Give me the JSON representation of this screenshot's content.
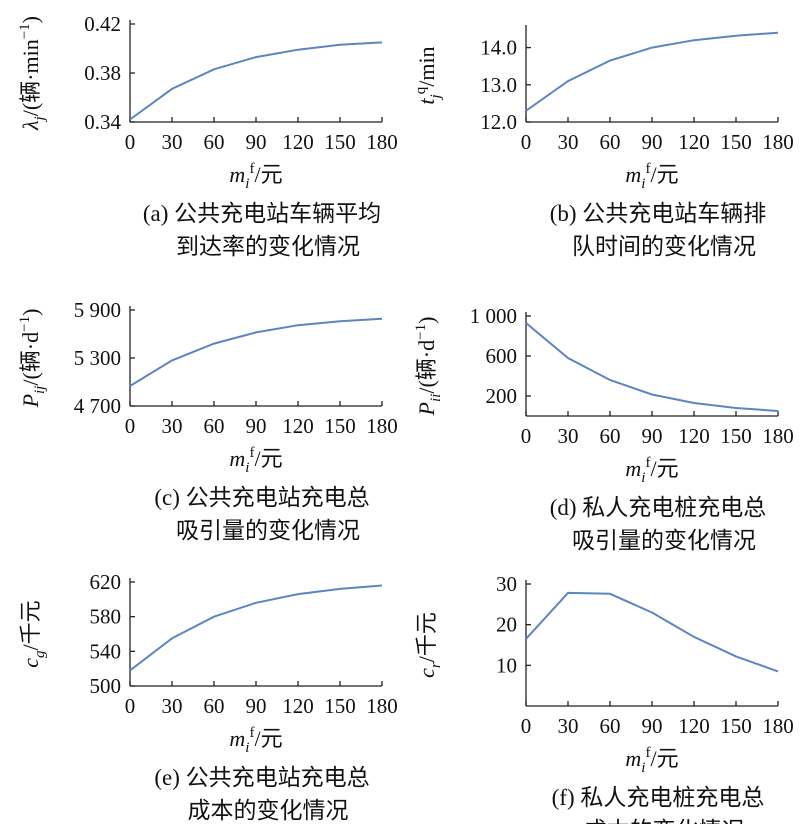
{
  "chart_data": [
    {
      "id": "a",
      "type": "line",
      "ylabel": "λj/(辆·min⁻¹)",
      "xlabel": "mif/元",
      "x": [
        0,
        30,
        60,
        90,
        120,
        150,
        180
      ],
      "x_ticks": [
        "0",
        "30",
        "60",
        "90",
        "120",
        "150",
        "180"
      ],
      "ylim": [
        0.34,
        0.42
      ],
      "y_ticks": [
        0.34,
        0.38,
        0.42
      ],
      "y_tick_labels": [
        "0.34",
        "0.38",
        "0.42"
      ],
      "values": [
        0.342,
        0.367,
        0.383,
        0.393,
        0.399,
        0.403,
        0.405
      ],
      "caption": [
        "(a) 公共充电站车辆平均",
        "到达率的变化情况"
      ],
      "color": "#5b86c0"
    },
    {
      "id": "b",
      "type": "line",
      "ylabel": "tjq/min",
      "xlabel": "mif/元",
      "x": [
        0,
        30,
        60,
        90,
        120,
        150,
        180
      ],
      "x_ticks": [
        "0",
        "30",
        "60",
        "90",
        "120",
        "150",
        "180"
      ],
      "ylim": [
        12.0,
        14.5
      ],
      "y_ticks": [
        12.0,
        13.0,
        14.0
      ],
      "y_tick_labels": [
        "12.0",
        "13.0",
        "14.0"
      ],
      "values": [
        12.3,
        13.1,
        13.65,
        14.0,
        14.2,
        14.32,
        14.4
      ],
      "caption": [
        "(b) 公共充电站车辆排",
        "队时间的变化情况"
      ],
      "color": "#5b86c0"
    },
    {
      "id": "c",
      "type": "line",
      "ylabel": "Pij/(辆·d⁻¹)",
      "xlabel": "mif/元",
      "x": [
        0,
        30,
        60,
        90,
        120,
        150,
        180
      ],
      "x_ticks": [
        "0",
        "30",
        "60",
        "90",
        "120",
        "150",
        "180"
      ],
      "ylim": [
        4700,
        5900
      ],
      "y_ticks": [
        4700,
        5300,
        5900
      ],
      "y_tick_labels": [
        "4 700",
        "5 300",
        "5 900"
      ],
      "values": [
        4950,
        5270,
        5480,
        5620,
        5710,
        5760,
        5790
      ],
      "caption": [
        "(c) 公共充电站充电总",
        "吸引量的变化情况"
      ],
      "color": "#5b86c0"
    },
    {
      "id": "d",
      "type": "line",
      "ylabel": "Pii/(辆·d⁻¹)",
      "xlabel": "mif/元",
      "x": [
        0,
        30,
        60,
        90,
        120,
        150,
        180
      ],
      "x_ticks": [
        "0",
        "30",
        "60",
        "90",
        "120",
        "150",
        "180"
      ],
      "ylim": [
        0,
        1000
      ],
      "y_ticks": [
        200,
        600,
        1000
      ],
      "y_tick_labels": [
        "200",
        "600",
        "1 000"
      ],
      "values": [
        930,
        580,
        360,
        215,
        130,
        80,
        50
      ],
      "caption": [
        "(d) 私人充电桩充电总",
        "吸引量的变化情况"
      ],
      "color": "#5b86c0"
    },
    {
      "id": "e",
      "type": "line",
      "ylabel": "cg/千元",
      "xlabel": "mif/元",
      "x": [
        0,
        30,
        60,
        90,
        120,
        150,
        180
      ],
      "x_ticks": [
        "0",
        "30",
        "60",
        "90",
        "120",
        "150",
        "180"
      ],
      "ylim": [
        500,
        620
      ],
      "y_ticks": [
        500,
        540,
        580,
        620
      ],
      "y_tick_labels": [
        "500",
        "540",
        "580",
        "620"
      ],
      "values": [
        518,
        555,
        580,
        596,
        606,
        612,
        616
      ],
      "caption": [
        "(e) 公共充电站充电总",
        "成本的变化情况"
      ],
      "color": "#5b86c0"
    },
    {
      "id": "f",
      "type": "line",
      "ylabel": "cr/千元",
      "xlabel": "mif/元",
      "x": [
        0,
        30,
        60,
        90,
        120,
        150,
        180
      ],
      "x_ticks": [
        "0",
        "30",
        "60",
        "90",
        "120",
        "150",
        "180"
      ],
      "ylim": [
        0,
        30
      ],
      "y_ticks": [
        10,
        20,
        30
      ],
      "y_tick_labels": [
        "10",
        "20",
        "30"
      ],
      "values": [
        16.5,
        27.8,
        27.6,
        23.0,
        17.0,
        12.2,
        8.5
      ],
      "caption": [
        "(f) 私人充电桩充电总",
        "成本的变化情况"
      ],
      "color": "#5b86c0"
    }
  ]
}
